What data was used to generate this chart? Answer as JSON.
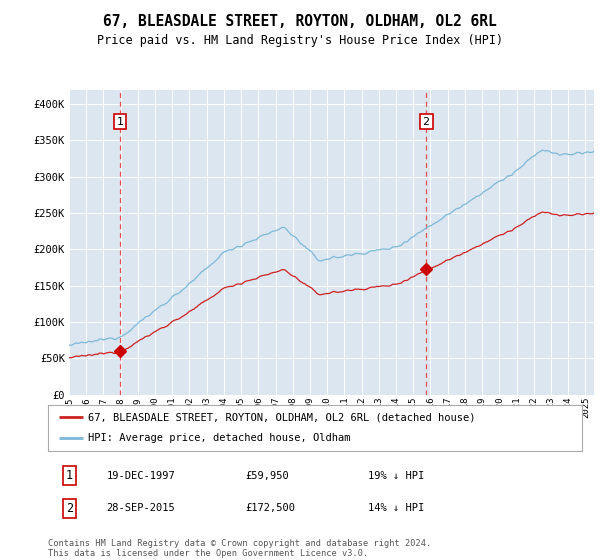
{
  "title": "67, BLEASDALE STREET, ROYTON, OLDHAM, OL2 6RL",
  "subtitle": "Price paid vs. HM Land Registry's House Price Index (HPI)",
  "background_color": "#dce6f1",
  "plot_bg_color": "#dce6f1",
  "red_line_label": "67, BLEASDALE STREET, ROYTON, OLDHAM, OL2 6RL (detached house)",
  "blue_line_label": "HPI: Average price, detached house, Oldham",
  "ann1_date": "19-DEC-1997",
  "ann1_price": "£59,950",
  "ann1_hpi": "19% ↓ HPI",
  "ann1_x": 1997.97,
  "ann1_y": 59950,
  "ann2_date": "28-SEP-2015",
  "ann2_price": "£172,500",
  "ann2_hpi": "14% ↓ HPI",
  "ann2_x": 2015.75,
  "ann2_y": 172500,
  "copyright": "Contains HM Land Registry data © Crown copyright and database right 2024.\nThis data is licensed under the Open Government Licence v3.0.",
  "yticks": [
    0,
    50000,
    100000,
    150000,
    200000,
    250000,
    300000,
    350000,
    400000
  ],
  "ytick_labels": [
    "£0",
    "£50K",
    "£100K",
    "£150K",
    "£200K",
    "£250K",
    "£300K",
    "£350K",
    "£400K"
  ],
  "xmin": 1995.0,
  "xmax": 2025.5,
  "ymin": 0,
  "ymax": 420000,
  "marker_style": "D"
}
